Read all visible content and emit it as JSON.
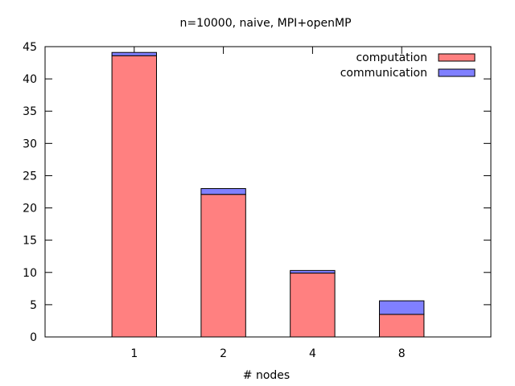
{
  "chart_data": {
    "type": "bar",
    "stacked": true,
    "title": "n=10000, naive, MPI+openMP",
    "xlabel": "# nodes",
    "ylabel": "",
    "categories": [
      "1",
      "2",
      "4",
      "8"
    ],
    "series": [
      {
        "name": "computation",
        "color": "#ff8080",
        "values": [
          43.6,
          22.1,
          9.9,
          3.5
        ]
      },
      {
        "name": "communication",
        "color": "#8080ff",
        "values": [
          0.5,
          0.9,
          0.4,
          2.1
        ]
      }
    ],
    "ylim": [
      0,
      45
    ],
    "yticks": [
      "0",
      "5",
      "10",
      "15",
      "20",
      "25",
      "30",
      "35",
      "40",
      "45"
    ],
    "grid": false,
    "legend_position": "top-right"
  }
}
